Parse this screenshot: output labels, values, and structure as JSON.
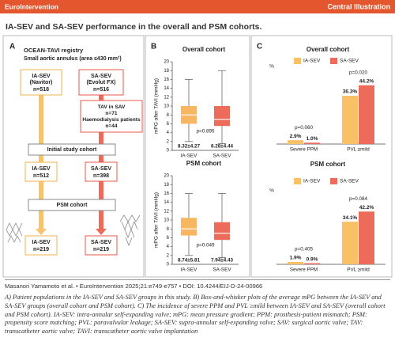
{
  "header": {
    "brand": "EuroIntervention",
    "label": "Central Illustration"
  },
  "title": "IA-SEV and SA-SEV performance in the overall and PSM cohorts.",
  "panel_a": {
    "label": "A",
    "registry": "OCEAN-TAVI registry",
    "subtitle": "Small aortic annulus (area ≤430 mm²)",
    "ia_enrolled": [
      "IA-SEV",
      "(Navitor)",
      "n=518"
    ],
    "sa_enrolled": [
      "SA-SEV",
      "(Evolut FX)",
      "n=516"
    ],
    "excluded": [
      "TAV in SAV",
      "n=71",
      "Haemodialysis patients",
      "n=44"
    ],
    "initial": "Initial study cohort",
    "ia_initial": [
      "IA-SEV",
      "n=512"
    ],
    "sa_initial": [
      "SA-SEV",
      "n=398"
    ],
    "psm": "PSM cohort",
    "ia_psm": [
      "IA-SEV",
      "n=219"
    ],
    "sa_psm": [
      "SA-SEV",
      "n=219"
    ]
  },
  "panel_labels": [
    "B",
    "C"
  ],
  "chart_data": [
    {
      "type": "box",
      "title": "Overall cohort",
      "ylabel": "mPG after TAVI (mmHg)",
      "categories": [
        "IA-SEV",
        "SA-SEV"
      ],
      "ylim": [
        0,
        20
      ],
      "yticks": [
        0,
        2,
        4,
        6,
        8,
        10,
        12,
        14,
        16,
        18,
        20
      ],
      "boxes": [
        {
          "color": "#f8b562",
          "whisker_low": 2,
          "q1": 6,
          "median": 8,
          "q3": 10,
          "whisker_high": 16
        },
        {
          "color": "#ec6b5b",
          "whisker_low": 1.5,
          "q1": 5.5,
          "median": 7,
          "q3": 10,
          "whisker_high": 18
        }
      ],
      "mean_labels": [
        "8.32±4.27",
        "8.28±4.44"
      ],
      "p_label": "p=0.895"
    },
    {
      "type": "box",
      "title": "PSM cohort",
      "ylabel": "mPG after TAVI (mmHg)",
      "categories": [
        "IA-SEV",
        "SA-SEV"
      ],
      "ylim": [
        0,
        20
      ],
      "yticks": [
        0,
        2,
        4,
        6,
        8,
        10,
        12,
        14,
        16,
        18,
        20
      ],
      "boxes": [
        {
          "color": "#f8b562",
          "whisker_low": 2,
          "q1": 6.5,
          "median": 8,
          "q3": 10.5,
          "whisker_high": 16
        },
        {
          "color": "#ec6b5b",
          "whisker_low": 1.5,
          "q1": 5.5,
          "median": 7,
          "q3": 9.5,
          "whisker_high": 16
        }
      ],
      "mean_labels": [
        "8.74±5.81",
        "7.94±4.43"
      ],
      "p_label": "p=0.049"
    },
    {
      "type": "bar",
      "title": "Overall cohort",
      "ylabel": "%",
      "categories": [
        "Severe PPM",
        "PVL ≥mild"
      ],
      "ylim": [
        0,
        50
      ],
      "series": [
        {
          "name": "IA-SEV",
          "color": "#f9c065",
          "values": [
            2.9,
            36.3
          ],
          "value_labels": [
            "2.9%",
            "36.3%"
          ]
        },
        {
          "name": "SA-SEV",
          "color": "#ec6b5b",
          "values": [
            1.0,
            44.2
          ],
          "value_labels": [
            "1.0%",
            "44.2%"
          ]
        }
      ],
      "p_labels": [
        "p=0.060",
        "p=0.020"
      ],
      "legend": "top"
    },
    {
      "type": "bar",
      "title": "PSM cohort",
      "ylabel": "%",
      "categories": [
        "Severe PPM",
        "PVL ≥mild"
      ],
      "ylim": [
        0,
        50
      ],
      "series": [
        {
          "name": "IA-SEV",
          "color": "#f9c065",
          "values": [
            1.9,
            34.1
          ],
          "value_labels": [
            "1.9%",
            "34.1%"
          ]
        },
        {
          "name": "SA-SEV",
          "color": "#ec6b5b",
          "values": [
            0.9,
            42.2
          ],
          "value_labels": [
            "0.9%",
            "42.2%"
          ]
        }
      ],
      "p_labels": [
        "p=0.405",
        "p=0.084"
      ],
      "legend": "top"
    }
  ],
  "footer": "Masanori Yamamoto et al. • EuroIntervention 2025;21:e749-e757 • DOI: 10.4244/EIJ-D-24-00966",
  "caption": "A) Patient populations in the IA-SEV and SA-SEV groups in this study. B) Box-and-whisker plots of the average mPG between the IA-SEV and SA-SEV groups (overall cohort and PSM cohort). C) The incidence of severe PPM and PVL ≥mild between IA-SEV and SA-SEV (overall cohort and PSM cohort). IA-SEV: intra-annular self-expanding valve; mPG: mean pressure gradient; PPM: prosthesis-patient mismatch; PSM: propensity score matching; PVL: paravalvular leakage; SA-SEV: supra-annular self-expanding valve; SAV: surgical aortic valve; TAV: transcatheter aortic valve; TAVI: transcatheter aortic valve implantation"
}
